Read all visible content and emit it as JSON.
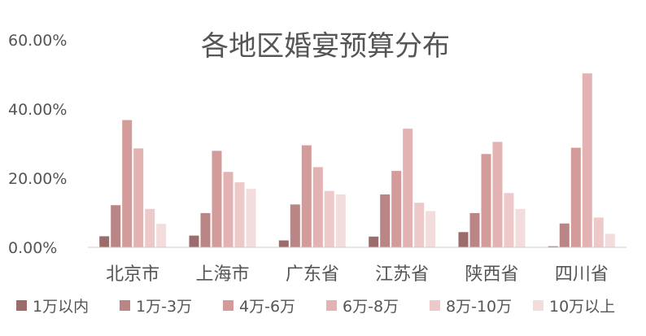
{
  "chart_data": {
    "type": "bar",
    "title": "各地区婚宴预算分布",
    "xlabel": "",
    "ylabel": "",
    "ylim": [
      0,
      60
    ],
    "yticks": [
      "0.00%",
      "20.00%",
      "40.00%",
      "60.00%"
    ],
    "grid": false,
    "legend_position": "bottom",
    "categories": [
      "北京市",
      "上海市",
      "广东省",
      "江苏省",
      "陕西省",
      "四川省"
    ],
    "series": [
      {
        "name": "1万以内",
        "color": "#9c6b6b",
        "values": [
          3.2,
          3.4,
          2.0,
          3.1,
          4.4,
          0.3
        ]
      },
      {
        "name": "1万-3万",
        "color": "#b98585",
        "values": [
          12.2,
          9.9,
          12.4,
          15.3,
          9.9,
          6.9
        ]
      },
      {
        "name": "4万-6万",
        "color": "#d49b9b",
        "values": [
          36.8,
          27.9,
          29.5,
          22.1,
          27.0,
          28.8
        ]
      },
      {
        "name": "6万-8万",
        "color": "#e3b3b3",
        "values": [
          28.6,
          21.8,
          23.2,
          34.3,
          30.5,
          50.3
        ]
      },
      {
        "name": "8万-10万",
        "color": "#eec9c9",
        "values": [
          11.1,
          18.8,
          16.3,
          12.9,
          15.7,
          8.6
        ]
      },
      {
        "name": "10万以上",
        "color": "#f3dcdc",
        "values": [
          6.8,
          16.9,
          15.3,
          10.5,
          11.1,
          3.9
        ]
      }
    ]
  }
}
